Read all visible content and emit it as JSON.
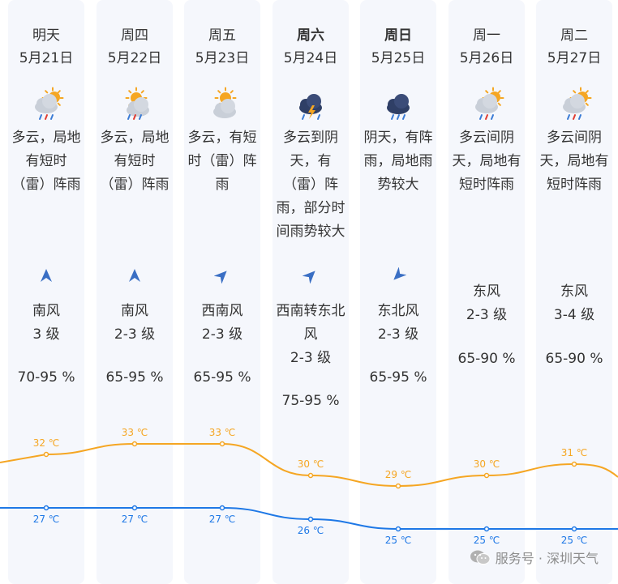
{
  "days": [
    {
      "label": "明天",
      "date": "5月21日",
      "bold": false,
      "icon": "cloud-rain-sun-icon",
      "desc": [
        "多云，局地",
        "有短时",
        "（雷）阵雨"
      ],
      "wind_dir": "南风",
      "wind_level": "3 级",
      "wind_rot": 0,
      "humidity": "70-95 %"
    },
    {
      "label": "周四",
      "date": "5月22日",
      "bold": false,
      "icon": "sun-cloud-rain-icon",
      "desc": [
        "多云，局地",
        "有短时",
        "（雷）阵雨"
      ],
      "wind_dir": "南风",
      "wind_level": "2-3 级",
      "wind_rot": 0,
      "humidity": "65-95 %"
    },
    {
      "label": "周五",
      "date": "5月23日",
      "bold": false,
      "icon": "sun-cloud-icon",
      "desc": [
        "多云，有短",
        "时（雷）阵",
        "雨"
      ],
      "wind_dir": "西南风",
      "wind_level": "2-3 级",
      "wind_rot": 45,
      "humidity": "65-95 %"
    },
    {
      "label": "周六",
      "date": "5月24日",
      "bold": true,
      "icon": "thunderstorm-icon",
      "desc": [
        "多云到阴",
        "天，有",
        "（雷）阵",
        "雨，部分时",
        "间雨势较大"
      ],
      "wind_dir": "西南转东北",
      "wind_dir2": "风",
      "wind_level": "2-3 级",
      "wind_rot": 45,
      "humidity": "75-95 %"
    },
    {
      "label": "周日",
      "date": "5月25日",
      "bold": true,
      "icon": "cloud-rain-icon",
      "desc": [
        "阴天，有阵",
        "雨，局地雨",
        "势较大"
      ],
      "wind_dir": "东北风",
      "wind_level": "2-3 级",
      "wind_rot": 225,
      "humidity": "65-95 %"
    },
    {
      "label": "周一",
      "date": "5月26日",
      "bold": false,
      "icon": "cloud-rain-sun-icon",
      "desc": [
        "多云间阴",
        "天，局地有",
        "短时阵雨"
      ],
      "wind_dir": "东风",
      "wind_level": "2-3 级",
      "wind_rot": null,
      "humidity": "65-90 %"
    },
    {
      "label": "周二",
      "date": "5月27日",
      "bold": false,
      "icon": "cloud-rain-sun-icon",
      "desc": [
        "多云间阴",
        "天，局地有",
        "短时阵雨"
      ],
      "wind_dir": "东风",
      "wind_level": "3-4 级",
      "wind_rot": null,
      "humidity": "65-90 %"
    }
  ],
  "colors": {
    "high": "#f5a623",
    "low": "#1e78e6",
    "column_bg": "#f5f7fc"
  },
  "chart_data": {
    "type": "line",
    "categories": [
      "5月21日",
      "5月22日",
      "5月23日",
      "5月24日",
      "5月25日",
      "5月26日",
      "5月27日"
    ],
    "series": [
      {
        "values": [
          32,
          33,
          33,
          30,
          29,
          30,
          31
        ],
        "labels": [
          "32 ℃",
          "33 ℃",
          "33 ℃",
          "30 ℃",
          "29 ℃",
          "30 ℃",
          "31 ℃"
        ]
      },
      {
        "values": [
          27,
          27,
          27,
          26,
          25,
          25,
          25
        ],
        "labels": [
          "27 ℃",
          "27 ℃",
          "27 ℃",
          "26 ℃",
          "25 ℃",
          "25 ℃",
          "25 ℃"
        ]
      }
    ]
  },
  "footer": {
    "text": "服务号 · 深圳天气",
    "icon": "wechat-icon"
  }
}
